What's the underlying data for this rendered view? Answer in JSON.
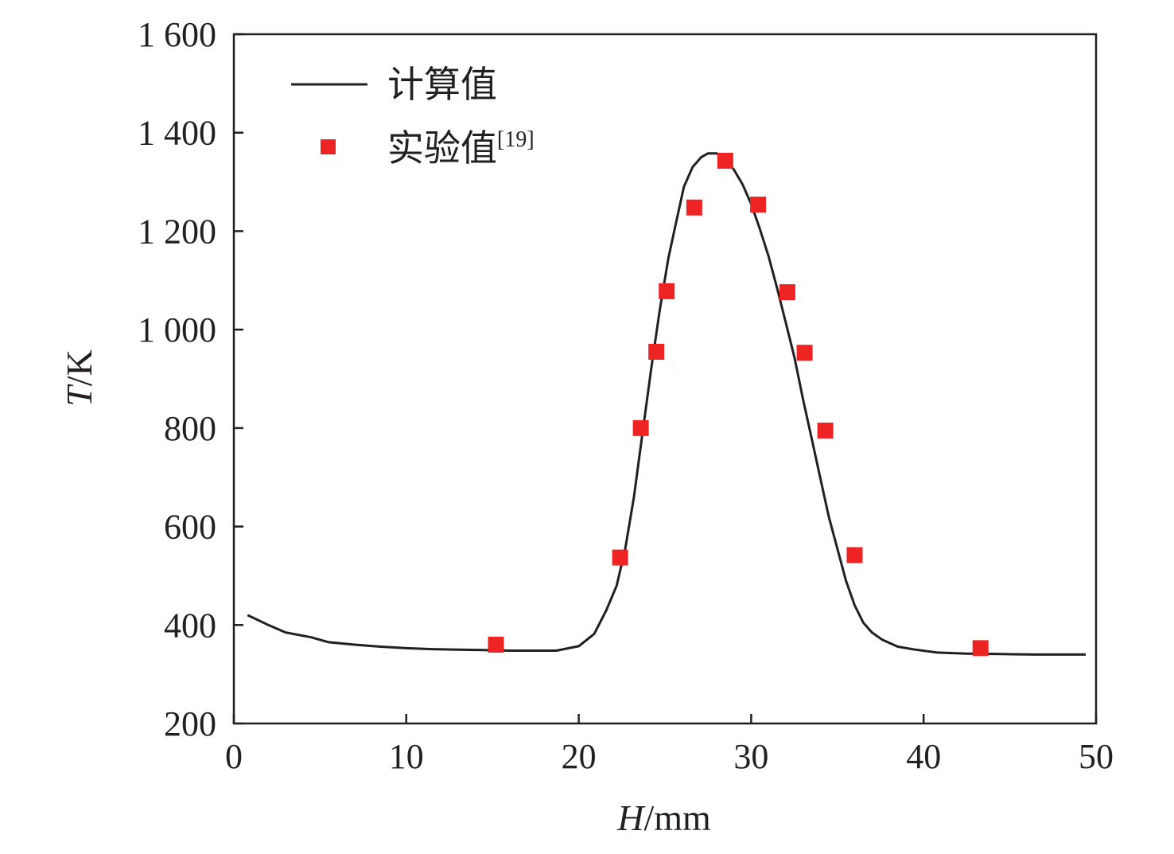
{
  "chart_data": {
    "type": "line",
    "xlabel_var": "H",
    "xlabel_unit": "/mm",
    "ylabel_var": "T",
    "ylabel_unit": "/K",
    "xlim": [
      0,
      50
    ],
    "ylim": [
      200,
      1600
    ],
    "xticks": [
      0,
      10,
      20,
      30,
      40,
      50
    ],
    "xtick_labels": [
      "0",
      "10",
      "20",
      "30",
      "40",
      "50"
    ],
    "yticks": [
      200,
      400,
      600,
      800,
      1000,
      1200,
      1400,
      1600
    ],
    "ytick_labels": [
      "200",
      "400",
      "600",
      "800",
      "1 000",
      "1 200",
      "1 400",
      "1 600"
    ],
    "grid": false,
    "legend_position": "top-left",
    "series": [
      {
        "name": "计算值",
        "kind": "line",
        "color": "#231f20",
        "x": [
          0.8,
          2.0,
          3.0,
          4.5,
          5.5,
          7.0,
          8.5,
          10.0,
          11.5,
          13.0,
          14.5,
          16.0,
          17.5,
          18.7,
          20.0,
          20.9,
          21.6,
          22.2,
          22.7,
          23.2,
          23.7,
          24.2,
          24.7,
          25.2,
          25.6,
          26.1,
          26.6,
          27.1,
          27.5,
          28.0,
          28.5,
          29.0,
          29.5,
          30.0,
          30.5,
          31.0,
          31.5,
          32.0,
          32.5,
          33.0,
          33.5,
          34.0,
          34.5,
          35.0,
          35.5,
          36.0,
          36.5,
          37.0,
          37.6,
          38.5,
          39.5,
          40.8,
          42.5,
          44.5,
          46.5,
          48.5,
          49.4
        ],
        "y": [
          420,
          400,
          385,
          375,
          365,
          360,
          356,
          353,
          351,
          350,
          349,
          348,
          348,
          348,
          357,
          382,
          430,
          480,
          555,
          660,
          790,
          920,
          1040,
          1145,
          1210,
          1290,
          1330,
          1350,
          1358,
          1358,
          1345,
          1325,
          1295,
          1255,
          1205,
          1150,
          1085,
          1015,
          945,
          860,
          780,
          700,
          620,
          555,
          490,
          440,
          405,
          385,
          370,
          356,
          350,
          344,
          342,
          341,
          340,
          340,
          340
        ]
      },
      {
        "name": "实验值",
        "name_sup": "[19]",
        "kind": "scatter",
        "marker": "square",
        "color": "#ee2324",
        "x": [
          15.2,
          22.4,
          23.6,
          24.5,
          25.1,
          26.7,
          28.5,
          30.4,
          32.1,
          33.1,
          34.3,
          36.0,
          43.3
        ],
        "y": [
          360,
          537,
          800,
          955,
          1078,
          1248,
          1343,
          1254,
          1076,
          953,
          795,
          542,
          353
        ]
      }
    ]
  }
}
